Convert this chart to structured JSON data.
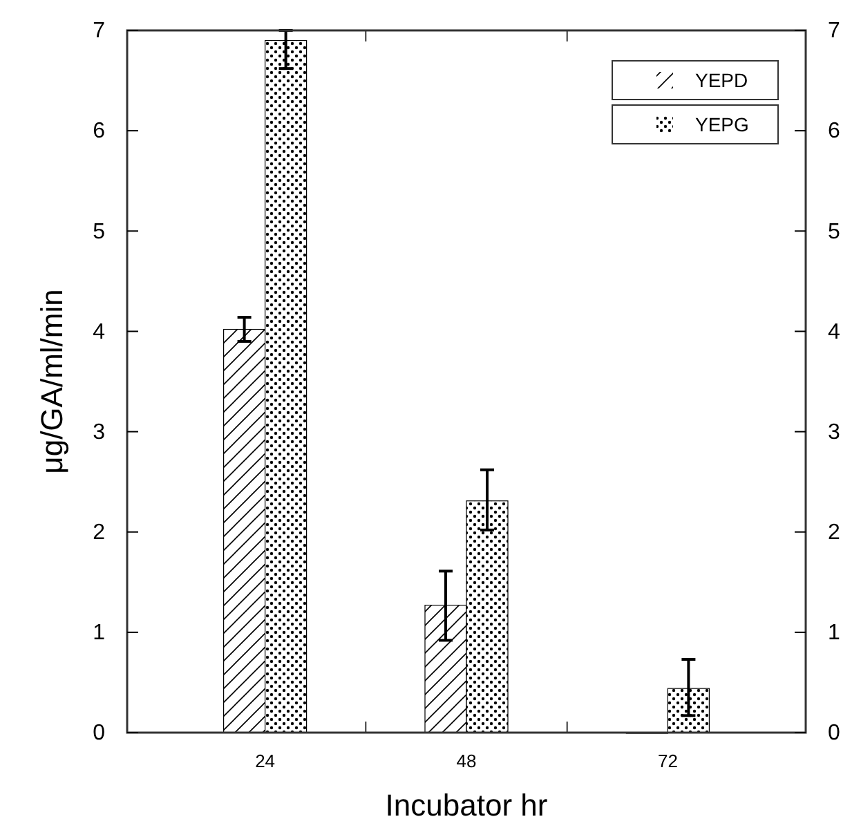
{
  "chart_data": {
    "type": "bar",
    "xlabel": "Incubator hr",
    "ylabel": "μg/GA/ml/min",
    "categories": [
      "24",
      "48",
      "72"
    ],
    "series": [
      {
        "name": "YEPD",
        "color": "#000000",
        "values": [
          4.02,
          1.27,
          0
        ],
        "errors": [
          0.12,
          [
            0.92,
            1.61
          ],
          null
        ]
      },
      {
        "name": "YEPG",
        "color": "#000000",
        "values": [
          6.9,
          2.31,
          0.44
        ],
        "errors": [
          [
            6.62,
            7
          ],
          [
            2.02,
            2.62
          ],
          [
            0.17,
            0.73
          ]
        ]
      }
    ],
    "ylim": [
      0,
      7
    ],
    "yticks": [
      0,
      1,
      2,
      3,
      4,
      5,
      6,
      7
    ],
    "y2lim": [
      0,
      7
    ],
    "y2ticks": [
      0,
      1,
      2,
      3,
      4,
      5,
      6,
      7
    ],
    "grid": false,
    "legend": "top right"
  }
}
